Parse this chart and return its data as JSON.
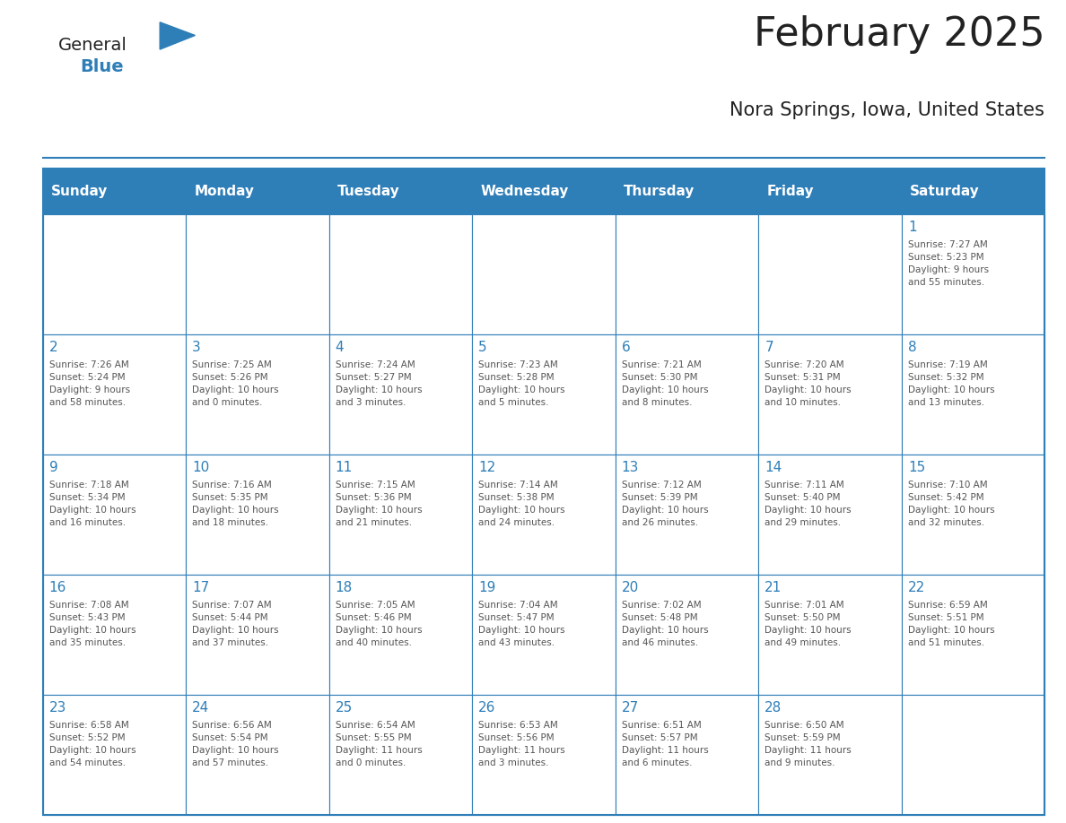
{
  "title": "February 2025",
  "subtitle": "Nora Springs, Iowa, United States",
  "header_bg": "#2E7EB8",
  "header_text_color": "#FFFFFF",
  "cell_border_color": "#2E7EB8",
  "day_number_color": "#2E7EB8",
  "cell_text_color": "#555555",
  "background_color": "#FFFFFF",
  "days_of_week": [
    "Sunday",
    "Monday",
    "Tuesday",
    "Wednesday",
    "Thursday",
    "Friday",
    "Saturday"
  ],
  "calendar_data": [
    [
      {
        "day": "",
        "info": ""
      },
      {
        "day": "",
        "info": ""
      },
      {
        "day": "",
        "info": ""
      },
      {
        "day": "",
        "info": ""
      },
      {
        "day": "",
        "info": ""
      },
      {
        "day": "",
        "info": ""
      },
      {
        "day": "1",
        "info": "Sunrise: 7:27 AM\nSunset: 5:23 PM\nDaylight: 9 hours\nand 55 minutes."
      }
    ],
    [
      {
        "day": "2",
        "info": "Sunrise: 7:26 AM\nSunset: 5:24 PM\nDaylight: 9 hours\nand 58 minutes."
      },
      {
        "day": "3",
        "info": "Sunrise: 7:25 AM\nSunset: 5:26 PM\nDaylight: 10 hours\nand 0 minutes."
      },
      {
        "day": "4",
        "info": "Sunrise: 7:24 AM\nSunset: 5:27 PM\nDaylight: 10 hours\nand 3 minutes."
      },
      {
        "day": "5",
        "info": "Sunrise: 7:23 AM\nSunset: 5:28 PM\nDaylight: 10 hours\nand 5 minutes."
      },
      {
        "day": "6",
        "info": "Sunrise: 7:21 AM\nSunset: 5:30 PM\nDaylight: 10 hours\nand 8 minutes."
      },
      {
        "day": "7",
        "info": "Sunrise: 7:20 AM\nSunset: 5:31 PM\nDaylight: 10 hours\nand 10 minutes."
      },
      {
        "day": "8",
        "info": "Sunrise: 7:19 AM\nSunset: 5:32 PM\nDaylight: 10 hours\nand 13 minutes."
      }
    ],
    [
      {
        "day": "9",
        "info": "Sunrise: 7:18 AM\nSunset: 5:34 PM\nDaylight: 10 hours\nand 16 minutes."
      },
      {
        "day": "10",
        "info": "Sunrise: 7:16 AM\nSunset: 5:35 PM\nDaylight: 10 hours\nand 18 minutes."
      },
      {
        "day": "11",
        "info": "Sunrise: 7:15 AM\nSunset: 5:36 PM\nDaylight: 10 hours\nand 21 minutes."
      },
      {
        "day": "12",
        "info": "Sunrise: 7:14 AM\nSunset: 5:38 PM\nDaylight: 10 hours\nand 24 minutes."
      },
      {
        "day": "13",
        "info": "Sunrise: 7:12 AM\nSunset: 5:39 PM\nDaylight: 10 hours\nand 26 minutes."
      },
      {
        "day": "14",
        "info": "Sunrise: 7:11 AM\nSunset: 5:40 PM\nDaylight: 10 hours\nand 29 minutes."
      },
      {
        "day": "15",
        "info": "Sunrise: 7:10 AM\nSunset: 5:42 PM\nDaylight: 10 hours\nand 32 minutes."
      }
    ],
    [
      {
        "day": "16",
        "info": "Sunrise: 7:08 AM\nSunset: 5:43 PM\nDaylight: 10 hours\nand 35 minutes."
      },
      {
        "day": "17",
        "info": "Sunrise: 7:07 AM\nSunset: 5:44 PM\nDaylight: 10 hours\nand 37 minutes."
      },
      {
        "day": "18",
        "info": "Sunrise: 7:05 AM\nSunset: 5:46 PM\nDaylight: 10 hours\nand 40 minutes."
      },
      {
        "day": "19",
        "info": "Sunrise: 7:04 AM\nSunset: 5:47 PM\nDaylight: 10 hours\nand 43 minutes."
      },
      {
        "day": "20",
        "info": "Sunrise: 7:02 AM\nSunset: 5:48 PM\nDaylight: 10 hours\nand 46 minutes."
      },
      {
        "day": "21",
        "info": "Sunrise: 7:01 AM\nSunset: 5:50 PM\nDaylight: 10 hours\nand 49 minutes."
      },
      {
        "day": "22",
        "info": "Sunrise: 6:59 AM\nSunset: 5:51 PM\nDaylight: 10 hours\nand 51 minutes."
      }
    ],
    [
      {
        "day": "23",
        "info": "Sunrise: 6:58 AM\nSunset: 5:52 PM\nDaylight: 10 hours\nand 54 minutes."
      },
      {
        "day": "24",
        "info": "Sunrise: 6:56 AM\nSunset: 5:54 PM\nDaylight: 10 hours\nand 57 minutes."
      },
      {
        "day": "25",
        "info": "Sunrise: 6:54 AM\nSunset: 5:55 PM\nDaylight: 11 hours\nand 0 minutes."
      },
      {
        "day": "26",
        "info": "Sunrise: 6:53 AM\nSunset: 5:56 PM\nDaylight: 11 hours\nand 3 minutes."
      },
      {
        "day": "27",
        "info": "Sunrise: 6:51 AM\nSunset: 5:57 PM\nDaylight: 11 hours\nand 6 minutes."
      },
      {
        "day": "28",
        "info": "Sunrise: 6:50 AM\nSunset: 5:59 PM\nDaylight: 11 hours\nand 9 minutes."
      },
      {
        "day": "",
        "info": ""
      }
    ]
  ],
  "logo_text_general": "General",
  "logo_text_blue": "Blue",
  "logo_color_general": "#222222",
  "logo_color_blue": "#2E7EB8",
  "logo_triangle_color": "#2E7EB8"
}
